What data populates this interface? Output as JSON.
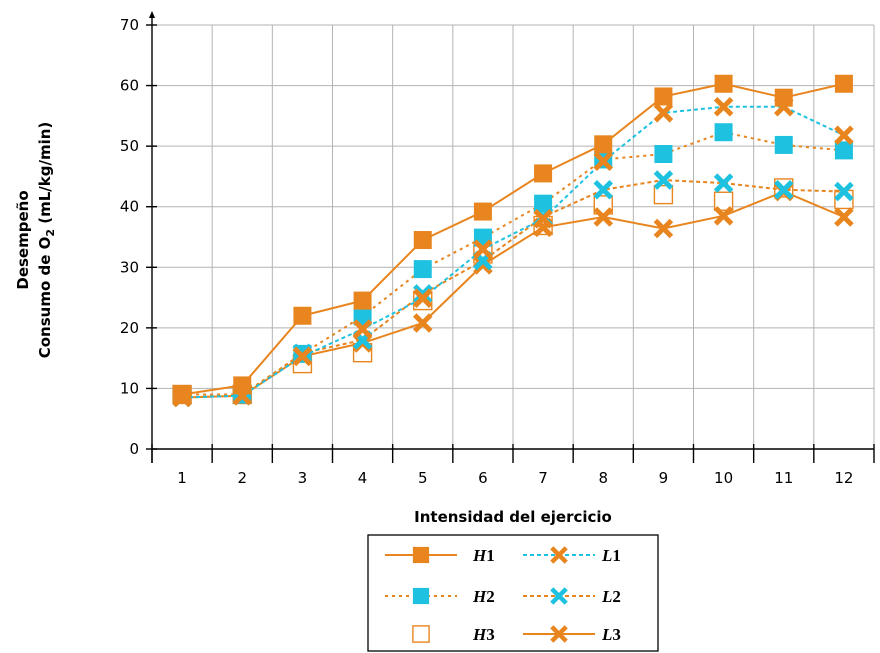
{
  "chart_data": {
    "type": "line",
    "xlabel": "Intensidad del ejercicio",
    "ylabel_line1": "Desempeño",
    "ylabel_line2_prefix": "Consumo de O",
    "ylabel_line2_sub": "2",
    "ylabel_line2_suffix": " (mL/kg/min)",
    "x": [
      1,
      2,
      3,
      4,
      5,
      6,
      7,
      8,
      9,
      10,
      11,
      12
    ],
    "ylim": [
      0,
      70
    ],
    "y_ticks": [
      0,
      10,
      20,
      30,
      40,
      50,
      60,
      70
    ],
    "x_ticks": [
      "1",
      "2",
      "3",
      "4",
      "5",
      "6",
      "7",
      "8",
      "9",
      "10",
      "11",
      "12"
    ],
    "grid": true,
    "legend_position": "bottom",
    "series": [
      {
        "name": "H1",
        "label_letter": "H",
        "label_num": "1",
        "color": "#E8851E",
        "line": "solid",
        "marker": "filled-square",
        "values": [
          9,
          10.5,
          22,
          24.5,
          34.5,
          39.2,
          45.5,
          50.3,
          58.2,
          60.3,
          58,
          60.3
        ]
      },
      {
        "name": "H2",
        "label_letter": "H",
        "label_num": "2",
        "color": "#1EC2E0",
        "line": "dotted-orange",
        "marker": "filled-square",
        "values": [
          9,
          9,
          15.7,
          21.9,
          29.7,
          34.9,
          40.5,
          47.8,
          48.7,
          52.3,
          50.2,
          49.3
        ]
      },
      {
        "name": "H3",
        "label_letter": "H",
        "label_num": "3",
        "color": "#E8851E",
        "line": "none",
        "marker": "open-square",
        "values": [
          9,
          9,
          14.1,
          15.9,
          24.5,
          32.2,
          36.9,
          40.3,
          42,
          40.9,
          43.1,
          41.2
        ]
      },
      {
        "name": "L1",
        "label_letter": "L",
        "label_num": "1",
        "color": "#E8851E",
        "line": "dashed-cyan",
        "marker": "x",
        "values": [
          8.5,
          8.8,
          15.3,
          19.8,
          24.9,
          33,
          38,
          47.5,
          55.5,
          56.5,
          56.5,
          51.8
        ]
      },
      {
        "name": "L2",
        "label_letter": "L",
        "label_num": "2",
        "color": "#1EC2E0",
        "line": "dashed-orange",
        "marker": "x",
        "values": [
          8.5,
          8.8,
          15.8,
          18,
          25.6,
          31.1,
          38.3,
          42.8,
          44.4,
          43.9,
          42.8,
          42.5
        ]
      },
      {
        "name": "L3",
        "label_letter": "L",
        "label_num": "3",
        "color": "#E8851E",
        "line": "solid",
        "marker": "x",
        "values": [
          8.5,
          8.8,
          15.3,
          17.5,
          20.8,
          30.4,
          36.6,
          38.3,
          36.4,
          38.5,
          42.5,
          38.3
        ]
      }
    ]
  }
}
